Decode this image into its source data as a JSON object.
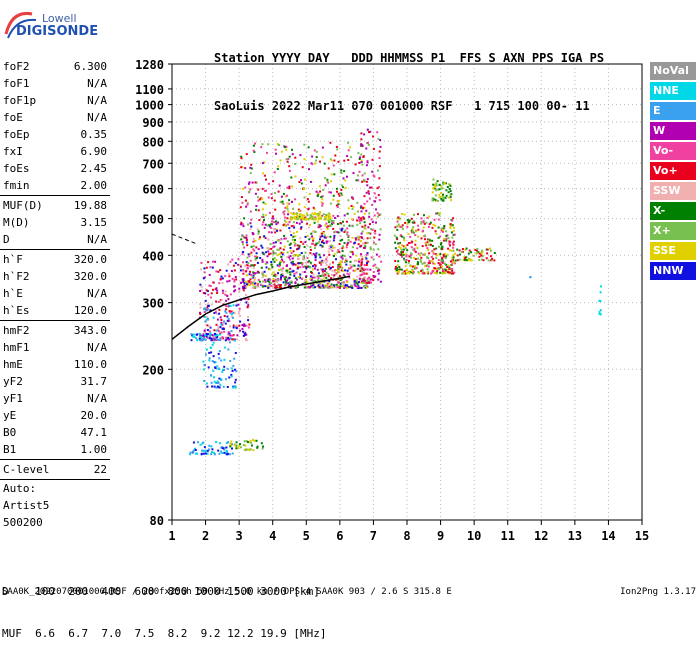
{
  "logo": {
    "line1": "Lowell",
    "line2": "DIGISONDE"
  },
  "header": {
    "line1": "Station YYYY DAY   DDD HHMMSS P1  FFS S AXN PPS IGA PS",
    "line2": "SaoLuis 2022 Mar11 070 001000 RSF   1 715 100 00- 11"
  },
  "params": [
    {
      "name": "foF2",
      "value": "6.300"
    },
    {
      "name": "foF1",
      "value": "N/A"
    },
    {
      "name": "foF1p",
      "value": "N/A"
    },
    {
      "name": "foE",
      "value": "N/A"
    },
    {
      "name": "foEp",
      "value": "0.35"
    },
    {
      "name": "fxI",
      "value": "6.90"
    },
    {
      "name": "foEs",
      "value": "2.45"
    },
    {
      "name": "fmin",
      "value": "2.00",
      "sep": true
    },
    {
      "name": "MUF(D)",
      "value": "19.88"
    },
    {
      "name": "M(D)",
      "value": "3.15"
    },
    {
      "name": "D",
      "value": "N/A",
      "sep": true
    },
    {
      "name": "h`F",
      "value": "320.0"
    },
    {
      "name": "h`F2",
      "value": "320.0"
    },
    {
      "name": "h`E",
      "value": "N/A"
    },
    {
      "name": "h`Es",
      "value": "120.0",
      "sep": true
    },
    {
      "name": "hmF2",
      "value": "343.0"
    },
    {
      "name": "hmF1",
      "value": "N/A"
    },
    {
      "name": "hmE",
      "value": "110.0"
    },
    {
      "name": "yF2",
      "value": "31.7"
    },
    {
      "name": "yF1",
      "value": "N/A"
    },
    {
      "name": "yE",
      "value": "20.0"
    },
    {
      "name": "B0",
      "value": "47.1"
    },
    {
      "name": "B1",
      "value": "1.00",
      "sep": true
    },
    {
      "name": "C-level",
      "value": "22",
      "sep": true
    }
  ],
  "auto": {
    "line1": "Auto:",
    "line2": "Artist5",
    "line3": "500200"
  },
  "legend": [
    {
      "label": "NoVal",
      "color": "#999999"
    },
    {
      "label": "NNE",
      "color": "#00d8e8"
    },
    {
      "label": "E",
      "color": "#3aa0f0"
    },
    {
      "label": "W",
      "color": "#b000b0"
    },
    {
      "label": "Vo-",
      "color": "#f040a0"
    },
    {
      "label": "Vo+",
      "color": "#e8001c"
    },
    {
      "label": "SSW",
      "color": "#f0b0b0"
    },
    {
      "label": "X-",
      "color": "#008000"
    },
    {
      "label": "X+",
      "color": "#78c050"
    },
    {
      "label": "SSE",
      "color": "#e0d000"
    },
    {
      "label": "NNW",
      "color": "#1010e0"
    }
  ],
  "footer": {
    "line1": "D    100  200  400  600  800 1000 1500 3000 [km]",
    "line2": "MUF  6.6  6.7  7.0  7.5  8.2  9.2 12.2 19.9 [MHz]",
    "bottom": "SAA0K_2022070001000.RSF / 280fx256h 50 kHz 5.0 km / DPS-4 SAA0K 903 / 2.6 S 315.8 E",
    "version": "Ion2Png 1.3.17"
  },
  "chart_data": {
    "type": "scatter",
    "xlim": [
      1,
      15
    ],
    "ylim": [
      80,
      1280
    ],
    "yscale": "log",
    "x_ticks": [
      1,
      2,
      3,
      4,
      5,
      6,
      7,
      8,
      9,
      10,
      11,
      12,
      13,
      14,
      15
    ],
    "y_ticks": [
      80,
      200,
      300,
      400,
      500,
      600,
      700,
      800,
      900,
      1000,
      1100,
      1280
    ],
    "grid": true,
    "legend_position": "right",
    "profile_line": {
      "x": [
        1.0,
        1.5,
        2.0,
        2.5,
        3.0,
        3.5,
        4.0,
        4.5,
        5.0,
        5.5,
        6.0,
        6.3
      ],
      "y": [
        240,
        260,
        280,
        295,
        305,
        315,
        322,
        330,
        336,
        342,
        348,
        352
      ]
    },
    "dashed_line": {
      "x": [
        1.0,
        1.7
      ],
      "y": [
        455,
        430
      ]
    },
    "clusters": [
      {
        "x": [
          1.8,
          3.3
        ],
        "y": [
          240,
          400
        ],
        "n": 260,
        "colors": [
          5,
          4,
          10,
          6,
          3
        ]
      },
      {
        "x": [
          1.9,
          2.9
        ],
        "y": [
          180,
          300
        ],
        "n": 120,
        "colors": [
          10,
          2,
          1
        ]
      },
      {
        "x": [
          1.5,
          2.4
        ],
        "y": [
          240,
          250
        ],
        "n": 40,
        "colors": [
          10,
          1,
          2
        ]
      },
      {
        "x": [
          1.5,
          2.8
        ],
        "y": [
          120,
          130
        ],
        "n": 60,
        "colors": [
          10,
          2,
          1
        ]
      },
      {
        "x": [
          2.7,
          3.7
        ],
        "y": [
          123,
          131
        ],
        "n": 40,
        "colors": [
          8,
          7,
          9
        ]
      },
      {
        "x": [
          3.0,
          6.8
        ],
        "y": [
          330,
          480
        ],
        "n": 900,
        "colors": [
          4,
          3,
          5,
          7,
          8,
          9,
          6,
          10
        ]
      },
      {
        "x": [
          3.0,
          6.8
        ],
        "y": [
          480,
          800
        ],
        "n": 380,
        "colors": [
          3,
          4,
          5,
          9,
          7,
          8
        ]
      },
      {
        "x": [
          4.5,
          5.7
        ],
        "y": [
          500,
          520
        ],
        "n": 90,
        "colors": [
          9,
          9,
          8
        ]
      },
      {
        "x": [
          6.6,
          7.2
        ],
        "y": [
          340,
          870
        ],
        "n": 160,
        "colors": [
          4,
          3,
          5,
          8
        ]
      },
      {
        "x": [
          7.6,
          9.4
        ],
        "y": [
          360,
          520
        ],
        "n": 420,
        "colors": [
          5,
          4,
          8,
          9,
          7
        ]
      },
      {
        "x": [
          8.7,
          9.3
        ],
        "y": [
          560,
          640
        ],
        "n": 60,
        "colors": [
          9,
          8,
          7
        ]
      },
      {
        "x": [
          9.4,
          10.6
        ],
        "y": [
          390,
          420
        ],
        "n": 60,
        "colors": [
          9,
          7,
          8,
          5
        ]
      },
      {
        "x": [
          13.7,
          13.75
        ],
        "y": [
          280,
          340
        ],
        "n": 8,
        "colors": [
          1
        ]
      },
      {
        "x": [
          11.6,
          11.65
        ],
        "y": [
          352,
          356
        ],
        "n": 2,
        "colors": [
          2
        ]
      }
    ]
  }
}
